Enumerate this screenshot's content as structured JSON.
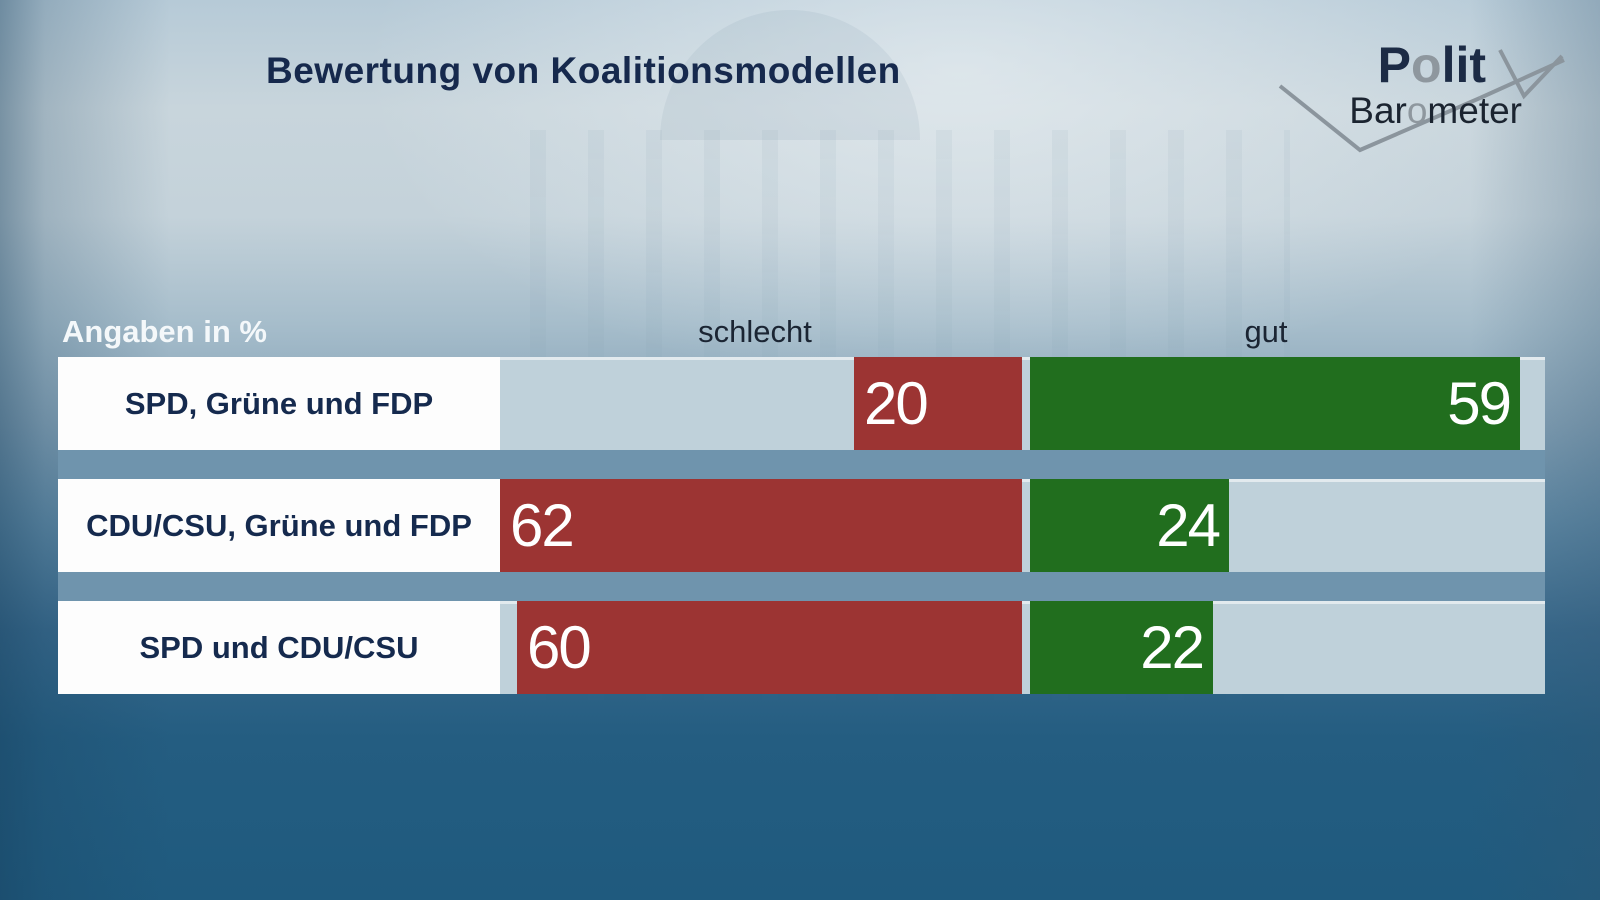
{
  "title": "Bewertung von Koalitionsmodellen",
  "logo": {
    "word1_start": "P",
    "word1_o": "o",
    "word1_end": "lit",
    "word2_start": "Bar",
    "word2_o": "o",
    "word2_end": "meter"
  },
  "chart_data": {
    "type": "bar",
    "orientation": "horizontal-diverging",
    "units_label": "Angaben in %",
    "left_header": "schlecht",
    "right_header": "gut",
    "axis_max_each_side": 62,
    "categories": [
      "SPD, Grüne und FDP",
      "CDU/CSU, Grüne und FDP",
      "SPD und CDU/CSU"
    ],
    "series": [
      {
        "name": "schlecht",
        "color": "#9c3433",
        "values": [
          20,
          62,
          60
        ]
      },
      {
        "name": "gut",
        "color": "#216e1e",
        "values": [
          59,
          24,
          22
        ]
      }
    ],
    "value_labels_shown": true,
    "grid": false,
    "legend_position": "top-inline-headers"
  },
  "colors": {
    "schlecht_bar": "#9c3433",
    "gut_bar": "#216e1e",
    "track": "#bfd1da",
    "row_separator_band": "#6f94ad",
    "label_box": "#fdfdfd",
    "title_text": "#16294d",
    "value_text": "#ffffff",
    "background_top": "#c8d5dc",
    "background_bottom": "#1f5a7e"
  }
}
